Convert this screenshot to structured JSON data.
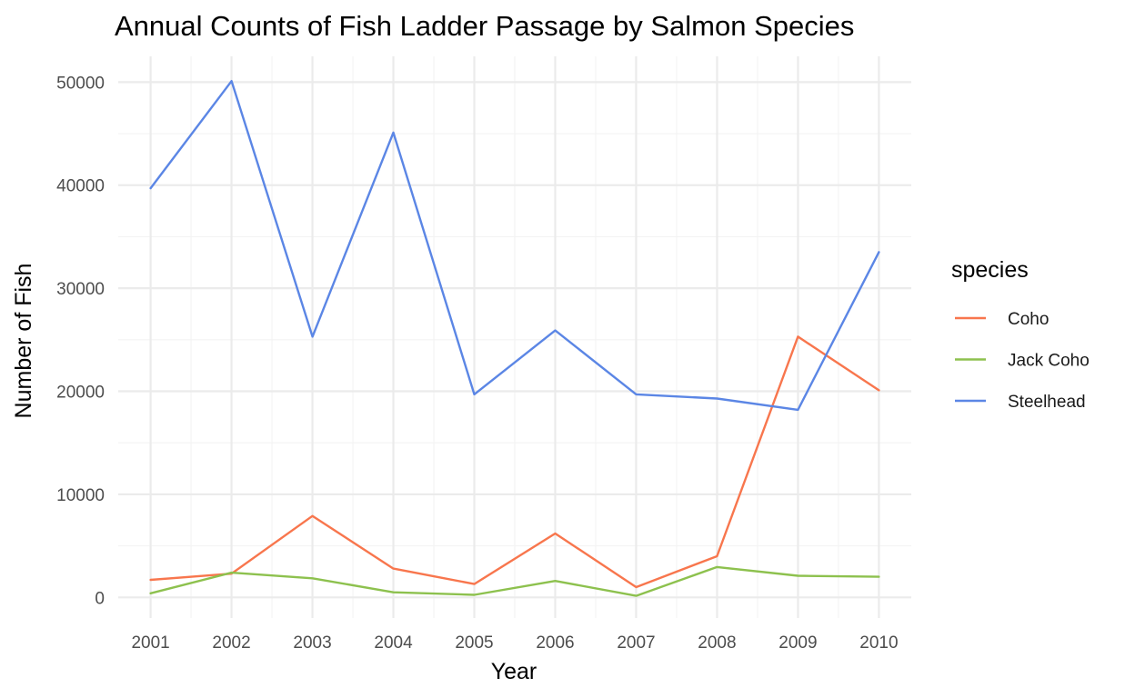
{
  "chart_data": {
    "type": "line",
    "title": "Annual Counts of Fish Ladder Passage by Salmon Species",
    "xlabel": "Year",
    "ylabel": "Number of Fish",
    "x": [
      2001,
      2002,
      2003,
      2004,
      2005,
      2006,
      2007,
      2008,
      2009,
      2010
    ],
    "x_tick_labels": [
      "2001",
      "2002",
      "2003",
      "2004",
      "2005",
      "2006",
      "2007",
      "2008",
      "2009",
      "2010"
    ],
    "y_ticks": [
      0,
      10000,
      20000,
      30000,
      40000,
      50000
    ],
    "y_tick_labels": [
      "0",
      "10000",
      "20000",
      "30000",
      "40000",
      "50000"
    ],
    "xlim": [
      2000.6,
      2010.4
    ],
    "ylim": [
      -2000,
      52500
    ],
    "grid": true,
    "legend": {
      "title": "species",
      "position": "right"
    },
    "series": [
      {
        "name": "Coho",
        "color": "#f8764d",
        "values": [
          1700,
          2300,
          7900,
          2800,
          1300,
          6200,
          1000,
          4000,
          25300,
          20100
        ]
      },
      {
        "name": "Jack Coho",
        "color": "#8dc14e",
        "values": [
          400,
          2400,
          1850,
          500,
          250,
          1600,
          150,
          2950,
          2100,
          2000
        ]
      },
      {
        "name": "Steelhead",
        "color": "#5b86e5",
        "values": [
          39700,
          50100,
          25300,
          45100,
          19700,
          25900,
          19700,
          19300,
          18200,
          33500
        ]
      }
    ]
  }
}
